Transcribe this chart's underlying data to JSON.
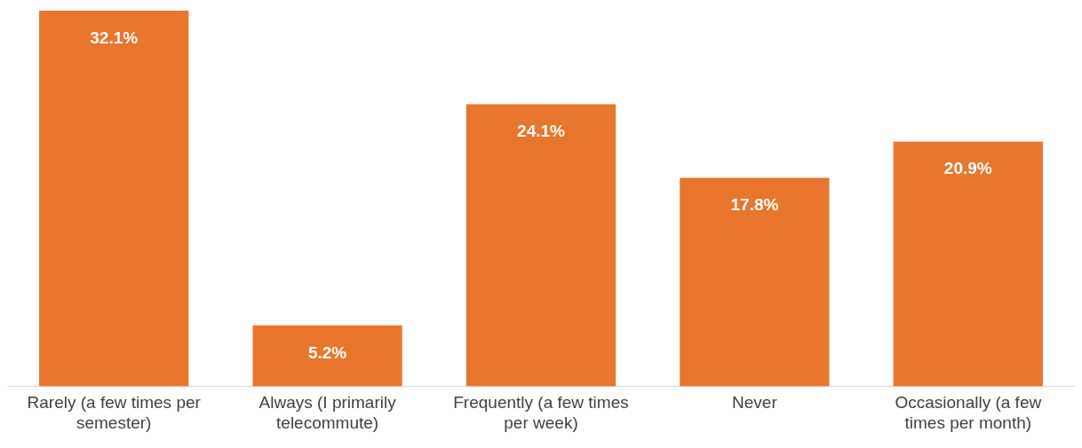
{
  "chart_data": {
    "type": "bar",
    "categories": [
      "Rarely (a few times per semester)",
      "Always (I primarily telecommute)",
      "Frequently (a few times per week)",
      "Never",
      "Occasionally (a few times per month)"
    ],
    "values": [
      32.1,
      5.2,
      24.1,
      17.8,
      20.9
    ],
    "value_labels": [
      "32.1%",
      "5.2%",
      "24.1%",
      "17.8%",
      "20.9%"
    ],
    "color": "#e8762c",
    "grid": false,
    "legend": false
  }
}
